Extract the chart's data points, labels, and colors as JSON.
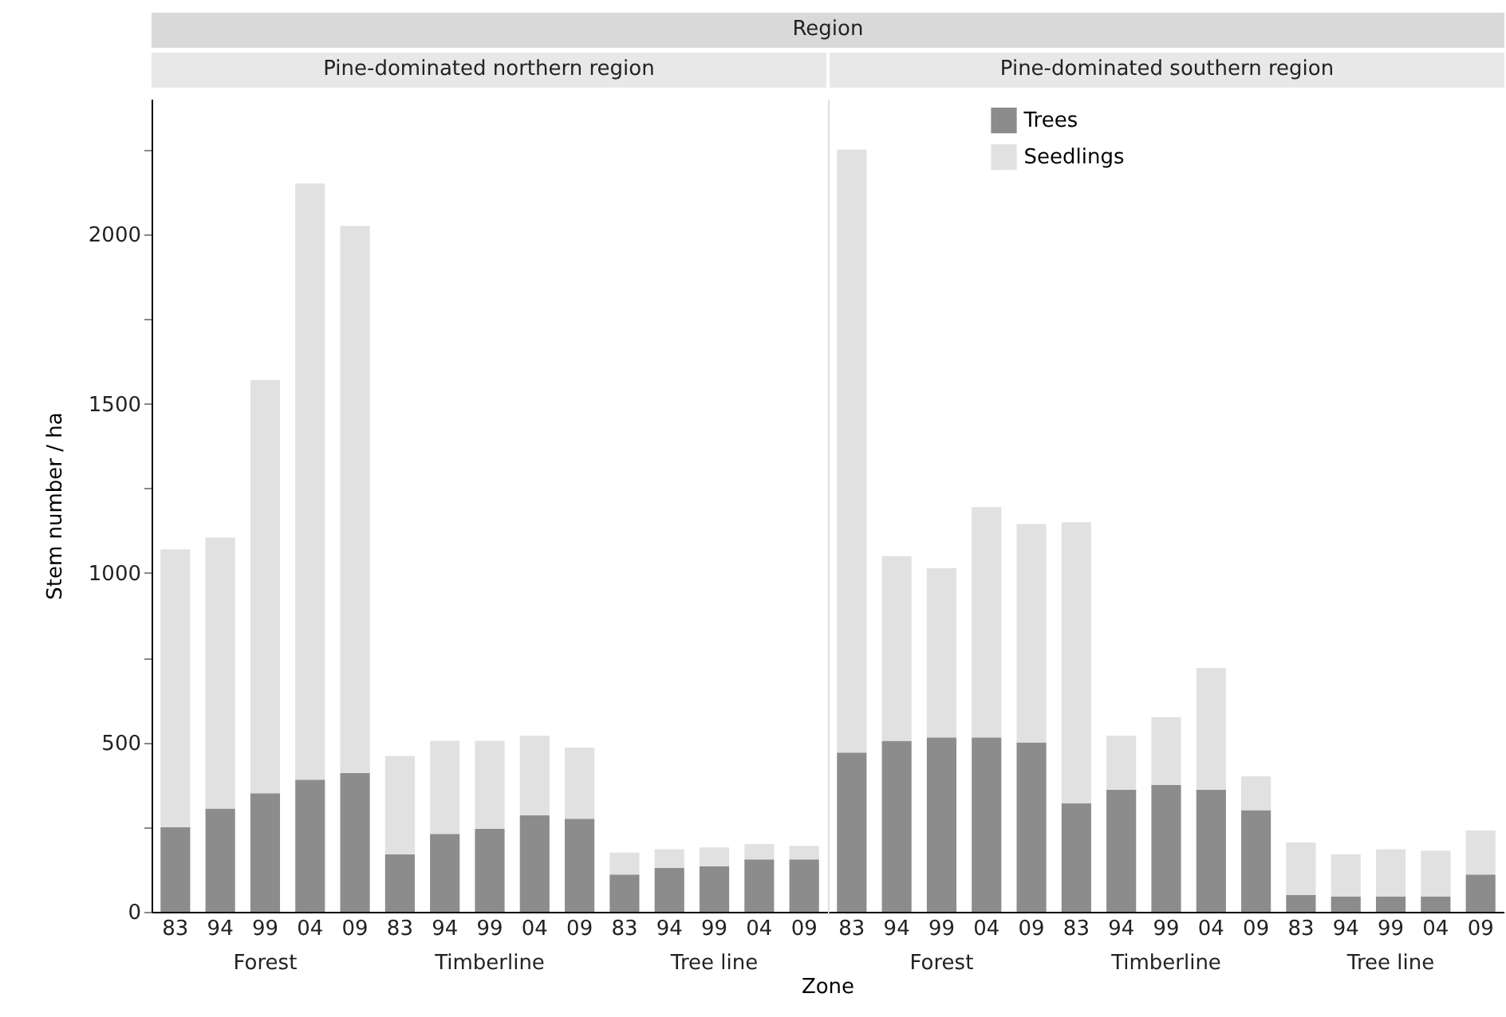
{
  "chart_data": [
    {
      "type": "bar",
      "title": "Region",
      "subtitle": "Pine-dominated northern region",
      "xlabel": "Zone",
      "ylabel": "Stem number / ha",
      "stacked": true,
      "categories": [
        "83",
        "94",
        "99",
        "04",
        "09",
        "83",
        "94",
        "99",
        "04",
        "09",
        "83",
        "94",
        "99",
        "04",
        "09"
      ],
      "series": [
        {
          "color": "#8c8c8c",
          "values": [
            250,
            305,
            350,
            390,
            410,
            170,
            230,
            245,
            285,
            275,
            110,
            130,
            135,
            155,
            155
          ]
        },
        {
          "color": "#e1e1e1",
          "values": [
            820,
            800,
            1220,
            1760,
            1615,
            290,
            275,
            260,
            235,
            210,
            65,
            55,
            55,
            45,
            40
          ]
        }
      ],
      "annotations": [
        "Forest",
        "Timberline",
        "Tree line"
      ],
      "ylim": [
        0,
        2400
      ],
      "yticks": [
        0,
        {
          "value": 250,
          "label": null
        },
        500,
        {
          "value": 750,
          "label": null
        },
        1000,
        {
          "value": 1250,
          "label": null
        },
        1500,
        {
          "value": 1750,
          "label": null
        },
        2000,
        {
          "value": 2250,
          "label": null
        }
      ]
    },
    {
      "type": "bar",
      "subtitle": "Pine-dominated southern region",
      "stacked": true,
      "legend": "top",
      "tick_labels": "x",
      "categories": [
        "83",
        "94",
        "99",
        "04",
        "09",
        "83",
        "94",
        "99",
        "04",
        "09",
        "83",
        "94",
        "99",
        "04",
        "09"
      ],
      "series": [
        {
          "name": "Trees",
          "color": "#8c8c8c",
          "values": [
            470,
            505,
            515,
            515,
            500,
            320,
            360,
            375,
            360,
            300,
            50,
            45,
            45,
            45,
            110
          ]
        },
        {
          "name": "Seedlings",
          "color": "#e1e1e1",
          "values": [
            1780,
            545,
            500,
            680,
            645,
            830,
            160,
            200,
            360,
            100,
            155,
            125,
            140,
            135,
            130
          ]
        }
      ],
      "annotations": [
        "Forest",
        "Timberline",
        "Tree line"
      ],
      "ylim": [
        0,
        2400
      ]
    }
  ]
}
